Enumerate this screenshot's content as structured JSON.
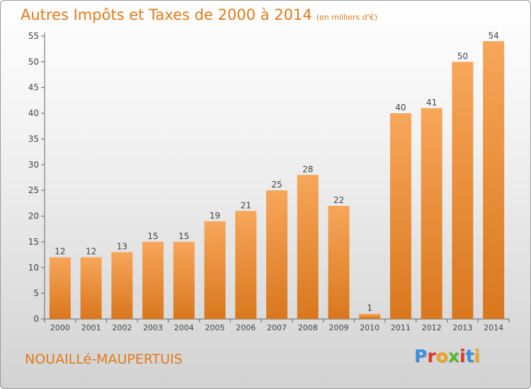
{
  "header": {
    "title": "Autres Impôts et Taxes de 2000 à 2014",
    "unit": "(en milliers d'€)"
  },
  "footer": {
    "commune": "NOUAILLé-MAUPERTUIS",
    "logo": "Proxiti",
    "logo_colors": [
      "#3c8fdc",
      "#e0362c",
      "#f2a21b",
      "#59b631",
      "#e0362c",
      "#3c8fdc",
      "#f2a21b"
    ]
  },
  "colors": {
    "accent": "#e07a18",
    "bar_light": "#f7a65a",
    "bar_dark": "#db7b21"
  },
  "chart_data": {
    "type": "bar",
    "categories": [
      "2000",
      "2001",
      "2002",
      "2003",
      "2004",
      "2005",
      "2006",
      "2007",
      "2008",
      "2009",
      "2010",
      "2011",
      "2012",
      "2013",
      "2014"
    ],
    "values": [
      12,
      12,
      13,
      15,
      15,
      19,
      21,
      25,
      28,
      22,
      1,
      40,
      41,
      50,
      54
    ],
    "yticks": [
      0,
      5,
      10,
      15,
      20,
      25,
      30,
      35,
      40,
      45,
      50,
      55
    ],
    "ylim": [
      0,
      55
    ],
    "grid": false,
    "data_labels": true
  }
}
